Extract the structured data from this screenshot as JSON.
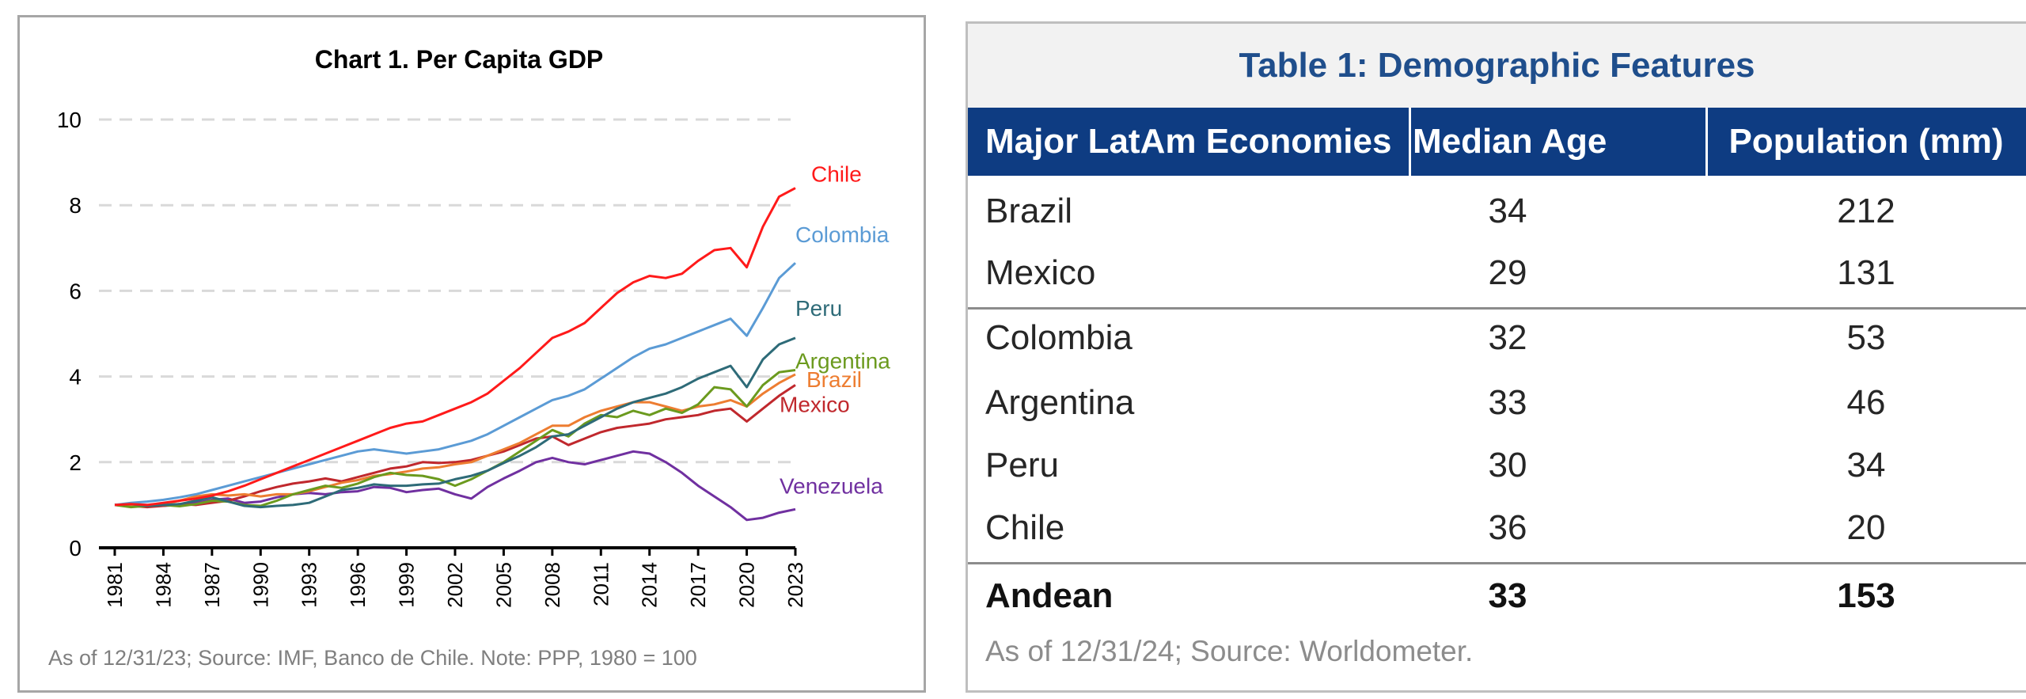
{
  "chart_data": {
    "type": "line",
    "title": "Chart 1. Per Capita GDP",
    "xlabel": "",
    "ylabel": "",
    "ylim": [
      0,
      10
    ],
    "yticks": [
      0,
      2,
      4,
      6,
      8,
      10
    ],
    "xticks": [
      "1981",
      "1984",
      "1987",
      "1990",
      "1993",
      "1996",
      "1999",
      "2002",
      "2005",
      "2008",
      "2011",
      "2014",
      "2017",
      "2020",
      "2023"
    ],
    "grid": true,
    "x": [
      1981,
      1982,
      1983,
      1984,
      1985,
      1986,
      1987,
      1988,
      1989,
      1990,
      1991,
      1992,
      1993,
      1994,
      1995,
      1996,
      1997,
      1998,
      1999,
      2000,
      2001,
      2002,
      2003,
      2004,
      2005,
      2006,
      2007,
      2008,
      2009,
      2010,
      2011,
      2012,
      2013,
      2014,
      2015,
      2016,
      2017,
      2018,
      2019,
      2020,
      2021,
      2022,
      2023
    ],
    "series": [
      {
        "name": "Chile",
        "color": "#ff1a1a",
        "values": [
          1.0,
          1.02,
          1.0,
          1.05,
          1.1,
          1.15,
          1.22,
          1.32,
          1.45,
          1.6,
          1.75,
          1.9,
          2.05,
          2.2,
          2.35,
          2.5,
          2.65,
          2.8,
          2.9,
          2.95,
          3.1,
          3.25,
          3.4,
          3.6,
          3.9,
          4.2,
          4.55,
          4.9,
          5.05,
          5.25,
          5.6,
          5.95,
          6.2,
          6.35,
          6.3,
          6.4,
          6.7,
          6.95,
          7.0,
          6.55,
          7.5,
          8.2,
          8.4
        ]
      },
      {
        "name": "Colombia",
        "color": "#5b9bd5",
        "values": [
          1.0,
          1.05,
          1.08,
          1.12,
          1.18,
          1.25,
          1.35,
          1.45,
          1.55,
          1.65,
          1.75,
          1.85,
          1.95,
          2.05,
          2.15,
          2.25,
          2.3,
          2.25,
          2.2,
          2.25,
          2.3,
          2.4,
          2.5,
          2.65,
          2.85,
          3.05,
          3.25,
          3.45,
          3.55,
          3.7,
          3.95,
          4.2,
          4.45,
          4.65,
          4.75,
          4.9,
          5.05,
          5.2,
          5.35,
          4.95,
          5.6,
          6.3,
          6.65
        ]
      },
      {
        "name": "Peru",
        "color": "#2e6b78",
        "values": [
          1.0,
          1.02,
          0.98,
          1.0,
          1.02,
          1.1,
          1.18,
          1.08,
          0.98,
          0.95,
          0.98,
          1.0,
          1.05,
          1.2,
          1.35,
          1.4,
          1.48,
          1.45,
          1.45,
          1.48,
          1.5,
          1.6,
          1.68,
          1.8,
          1.98,
          2.15,
          2.35,
          2.6,
          2.65,
          2.85,
          3.05,
          3.25,
          3.4,
          3.5,
          3.6,
          3.75,
          3.95,
          4.1,
          4.25,
          3.75,
          4.4,
          4.75,
          4.9
        ]
      },
      {
        "name": "Argentina",
        "color": "#6b9a1e",
        "values": [
          1.0,
          0.95,
          0.98,
          1.0,
          0.97,
          1.02,
          1.1,
          1.08,
          1.0,
          0.98,
          1.1,
          1.25,
          1.35,
          1.45,
          1.4,
          1.5,
          1.65,
          1.75,
          1.7,
          1.68,
          1.6,
          1.45,
          1.6,
          1.8,
          2.0,
          2.25,
          2.5,
          2.75,
          2.6,
          2.9,
          3.1,
          3.05,
          3.2,
          3.1,
          3.25,
          3.15,
          3.35,
          3.75,
          3.7,
          3.3,
          3.8,
          4.1,
          4.15
        ]
      },
      {
        "name": "Brazil",
        "color": "#ed7d31",
        "values": [
          1.0,
          1.0,
          0.98,
          1.02,
          1.1,
          1.2,
          1.25,
          1.22,
          1.25,
          1.2,
          1.25,
          1.25,
          1.32,
          1.42,
          1.52,
          1.58,
          1.68,
          1.72,
          1.78,
          1.85,
          1.88,
          1.95,
          2.0,
          2.15,
          2.3,
          2.45,
          2.65,
          2.85,
          2.85,
          3.05,
          3.2,
          3.3,
          3.4,
          3.4,
          3.3,
          3.2,
          3.3,
          3.35,
          3.45,
          3.3,
          3.6,
          3.85,
          4.05
        ]
      },
      {
        "name": "Mexico",
        "color": "#c0282d",
        "values": [
          1.0,
          0.98,
          0.95,
          0.98,
          1.02,
          1.0,
          1.05,
          1.1,
          1.2,
          1.32,
          1.42,
          1.5,
          1.55,
          1.62,
          1.55,
          1.65,
          1.75,
          1.85,
          1.9,
          2.0,
          1.98,
          2.0,
          2.05,
          2.15,
          2.25,
          2.4,
          2.55,
          2.6,
          2.4,
          2.55,
          2.7,
          2.8,
          2.85,
          2.9,
          3.0,
          3.05,
          3.1,
          3.2,
          3.25,
          2.95,
          3.25,
          3.55,
          3.8
        ]
      },
      {
        "name": "Venezuela",
        "color": "#7030a0",
        "values": [
          1.0,
          1.02,
          1.0,
          0.98,
          1.0,
          1.05,
          1.12,
          1.15,
          1.05,
          1.08,
          1.18,
          1.25,
          1.28,
          1.25,
          1.3,
          1.32,
          1.42,
          1.4,
          1.3,
          1.35,
          1.38,
          1.25,
          1.15,
          1.42,
          1.62,
          1.8,
          2.0,
          2.1,
          2.0,
          1.95,
          2.05,
          2.15,
          2.25,
          2.2,
          2.0,
          1.75,
          1.45,
          1.2,
          0.95,
          0.65,
          0.7,
          0.82,
          0.9
        ]
      }
    ],
    "legend_placement": "end-of-line labels"
  },
  "chart_note": "As of 12/31/23; Source: IMF, Banco de Chile. Note: PPP, 1980 = 100",
  "table": {
    "title": "Table 1: Demographic Features",
    "headers": [
      "Major LatAm Economies",
      "Median Age",
      "Population (mm)"
    ],
    "rows": [
      [
        "Brazil",
        "34",
        "212"
      ],
      [
        "Mexico",
        "29",
        "131"
      ],
      [
        "Colombia",
        "32",
        "53"
      ],
      [
        "Argentina",
        "33",
        "46"
      ],
      [
        "Peru",
        "30",
        "34"
      ],
      [
        "Chile",
        "36",
        "20"
      ]
    ],
    "total": [
      "Andean",
      "33",
      "153"
    ],
    "note": "As of 12/31/24; Source: Worldometer."
  }
}
